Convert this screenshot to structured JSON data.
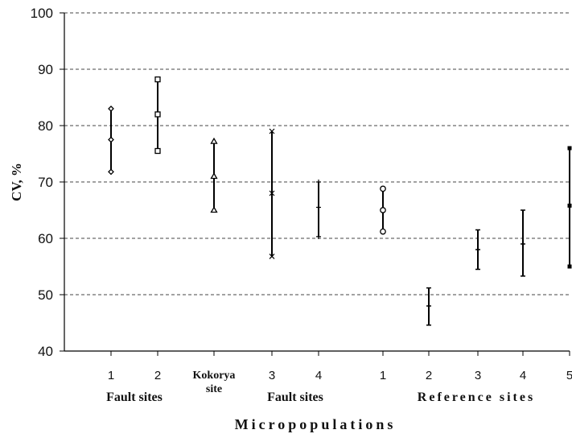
{
  "chart_data": {
    "type": "scatter",
    "ylabel": "CV, %",
    "xlabel": "Micropopulations",
    "ylim": [
      40,
      100
    ],
    "yticks": [
      40,
      50,
      60,
      70,
      80,
      90,
      100
    ],
    "grid": true,
    "categories": [
      "1",
      "2",
      "Kokorya site",
      "3",
      "4",
      "1",
      "2",
      "3",
      "4",
      "5"
    ],
    "groups": [
      {
        "label": "Fault sites",
        "members": [
          0,
          1
        ]
      },
      {
        "label": "Fault sites",
        "members": [
          3,
          4
        ]
      },
      {
        "label": "Reference sites",
        "members": [
          5,
          6,
          7,
          8,
          9
        ]
      }
    ],
    "series": [
      {
        "mean": [
          77.5,
          82,
          71,
          68,
          65.5,
          65,
          48,
          58,
          59,
          65.8
        ],
        "upper": [
          83,
          88.2,
          77.2,
          79,
          70,
          68.8,
          51.2,
          61.5,
          65,
          76
        ],
        "lower": [
          71.8,
          75.5,
          65,
          56.8,
          60.3,
          61.2,
          44.6,
          54.5,
          53.3,
          55
        ],
        "markers": [
          "diamond",
          "square",
          "triangle",
          "x",
          "plus",
          "circle",
          "dash",
          "dash",
          "dash",
          "square-filled"
        ]
      }
    ]
  }
}
